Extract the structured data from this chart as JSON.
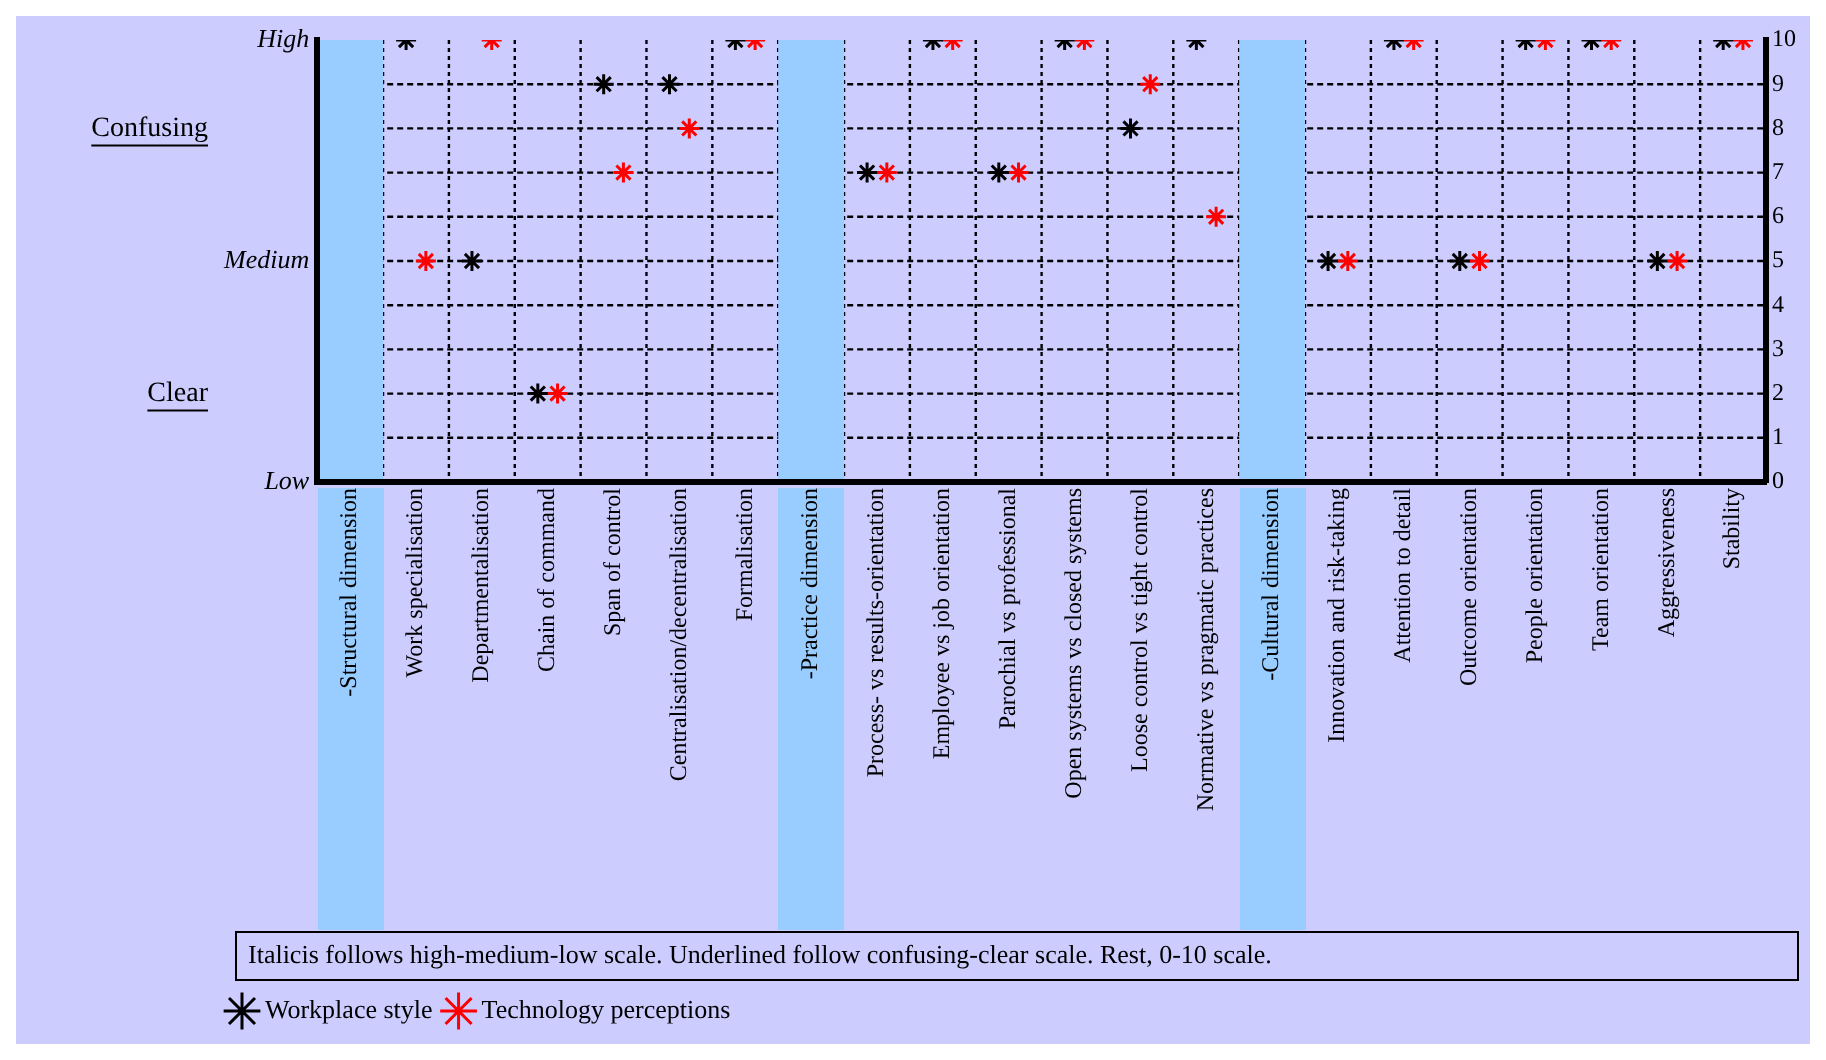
{
  "chart_data": {
    "type": "scatter",
    "categories": [
      "-Structural dimension",
      "Work specialisation",
      "Departmentalisation",
      "Chain of command",
      "Span of control",
      "Centralisation/decentralisation",
      "Formalisation",
      "-Practice dimension",
      "Process- vs results-orientation",
      "Employee vs job orientation",
      "Parochial vs professional",
      "Open systems vs closed systems",
      "Loose control vs tight control",
      "Normative vs pragmatic practices",
      "-Cultural dimension",
      "Innovation and risk-taking",
      "Attention to detail",
      "Outcome orientation",
      "People orientation",
      "Team orientation",
      "Aggressiveness",
      "Stability"
    ],
    "series": [
      {
        "name": "Workplace style",
        "color": "#000000",
        "values": [
          null,
          10,
          5,
          2,
          9,
          9,
          10,
          null,
          7,
          10,
          7,
          10,
          8,
          10,
          null,
          5,
          10,
          5,
          10,
          10,
          5,
          10
        ]
      },
      {
        "name": "Technology perceptions",
        "color": "#ff0000",
        "values": [
          null,
          5,
          10,
          2,
          7,
          8,
          10,
          null,
          7,
          10,
          7,
          10,
          9,
          6,
          null,
          5,
          10,
          5,
          10,
          10,
          5,
          10
        ]
      }
    ],
    "ylim": [
      0,
      10
    ],
    "yticks": [
      0,
      1,
      2,
      3,
      4,
      5,
      6,
      7,
      8,
      9,
      10
    ],
    "y2_categories": [
      "High",
      null,
      null,
      null,
      null,
      "Medium",
      null,
      null,
      null,
      null,
      "Low"
    ],
    "bands": [
      {
        "axis": "x",
        "from": "-Structural dimension",
        "to": "-Structural dimension",
        "color": "#99ccff"
      },
      {
        "axis": "x",
        "from": "-Practice dimension",
        "to": "-Practice dimension",
        "color": "#99ccff"
      },
      {
        "axis": "x",
        "from": "-Cultural dimension",
        "to": "-Cultural dimension",
        "color": "#99ccff"
      }
    ],
    "annotations": [
      "Confusing",
      "Clear",
      "Italicis follows high-medium-low scale. Underlined follow confusing-clear scale. Rest, 0-10 scale."
    ],
    "grid": true,
    "marker": "cross",
    "legend": "bottom left"
  }
}
